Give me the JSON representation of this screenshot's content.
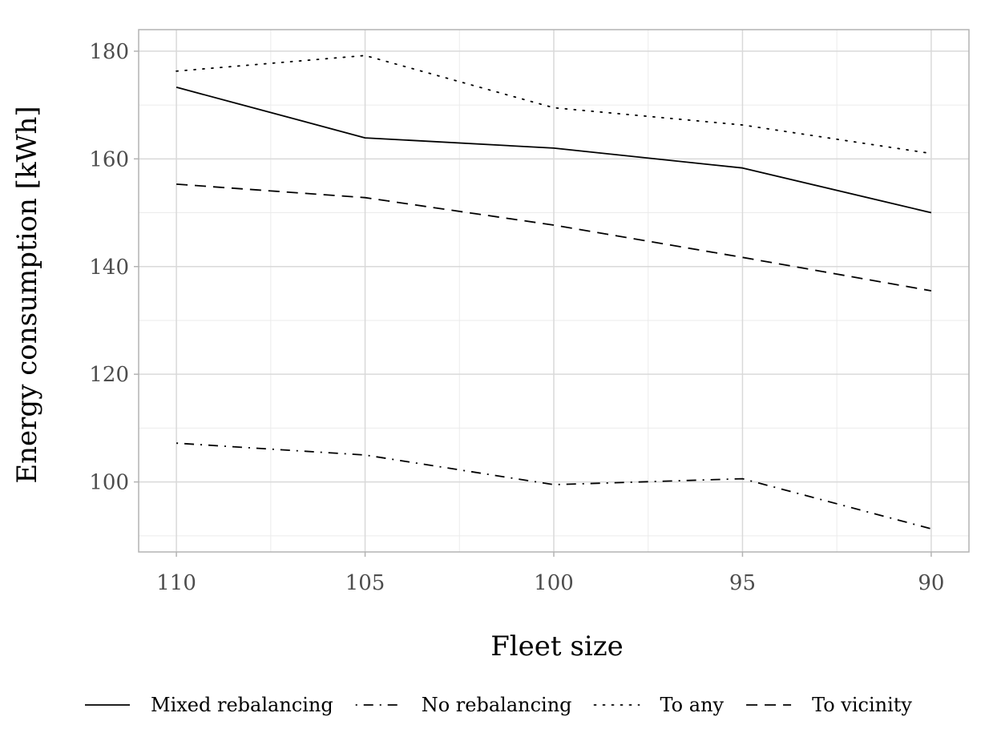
{
  "chart_data": {
    "type": "line",
    "title": "",
    "xlabel": "Fleet size",
    "ylabel": "Energy consumption [kWh]",
    "x": [
      110,
      105,
      100,
      95,
      90
    ],
    "x_tick_labels": [
      "110",
      "105",
      "100",
      "95",
      "90"
    ],
    "x_reversed": true,
    "xlim": [
      111,
      89
    ],
    "ylim": [
      87,
      184
    ],
    "y_ticks": [
      100,
      120,
      140,
      160,
      180
    ],
    "y_tick_labels": [
      "100",
      "120",
      "140",
      "160",
      "180"
    ],
    "y_minor_ticks": [
      90,
      110,
      130,
      150,
      170
    ],
    "grid": true,
    "legend_position": "bottom",
    "series": [
      {
        "name": "Mixed rebalancing",
        "linestyle": "solid",
        "values": [
          173.3,
          163.9,
          162.0,
          158.3,
          150.0
        ]
      },
      {
        "name": "No rebalancing",
        "linestyle": "dashdot",
        "values": [
          107.2,
          105.0,
          99.5,
          100.6,
          91.3
        ]
      },
      {
        "name": "To any",
        "linestyle": "dotted",
        "values": [
          176.3,
          179.2,
          169.5,
          166.3,
          161.0
        ]
      },
      {
        "name": "To vicinity",
        "linestyle": "dashed",
        "values": [
          155.3,
          152.8,
          147.7,
          141.7,
          135.5
        ]
      }
    ],
    "colors": {
      "line": "#000000",
      "grid_major": "#d9d9d9",
      "grid_minor": "#ebebeb",
      "panel_border": "#b3b3b3",
      "tick_label": "#4d4d4d",
      "axis_title": "#000000"
    }
  }
}
